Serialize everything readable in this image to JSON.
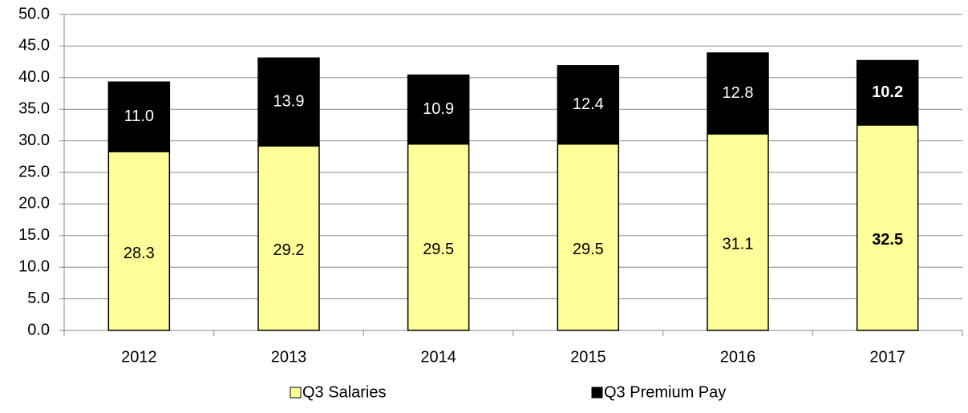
{
  "chart_data": {
    "type": "stacked_bar",
    "categories": [
      "2012",
      "2013",
      "2014",
      "2015",
      "2016",
      "2017"
    ],
    "series": [
      {
        "name": "Q3 Salaries",
        "color": "#ffff99",
        "values": [
          28.3,
          29.2,
          29.5,
          29.5,
          31.1,
          32.5
        ],
        "value_labels": [
          "28.3",
          "29.2",
          "29.5",
          "29.5",
          "31.1",
          "32.5"
        ]
      },
      {
        "name": "Q3 Premium Pay",
        "color": "#000000",
        "values": [
          11.0,
          13.9,
          10.9,
          12.4,
          12.8,
          10.2
        ],
        "value_labels": [
          "11.0",
          "13.9",
          "10.9",
          "12.4",
          "12.8",
          "10.2"
        ]
      }
    ],
    "ylim": [
      0,
      50
    ],
    "yticks": [
      {
        "value": 0,
        "label": "0.0"
      },
      {
        "value": 5,
        "label": "5.0"
      },
      {
        "value": 10,
        "label": "10.0"
      },
      {
        "value": 15,
        "label": "15.0"
      },
      {
        "value": 20,
        "label": "20.0"
      },
      {
        "value": 25,
        "label": "25.0"
      },
      {
        "value": 30,
        "label": "30.0"
      },
      {
        "value": 35,
        "label": "35.0"
      },
      {
        "value": 40,
        "label": "40.0"
      },
      {
        "value": 45,
        "label": "45.0"
      },
      {
        "value": 50,
        "label": "50.0"
      }
    ],
    "grid": true,
    "legend": "bottom"
  }
}
